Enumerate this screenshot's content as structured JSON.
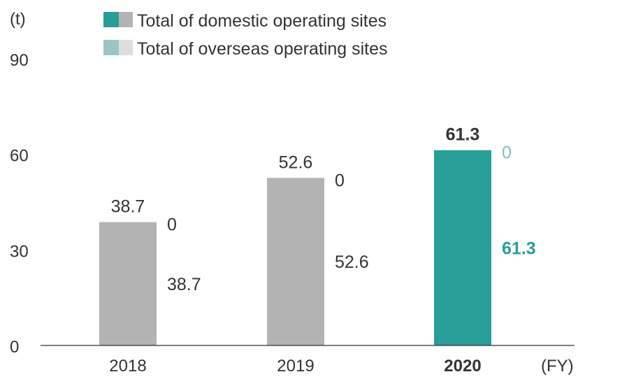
{
  "chart_data": {
    "type": "bar",
    "ylabel": "(t)",
    "xlabel": "(FY)",
    "ylim": [
      0,
      90
    ],
    "yticks": [
      "0",
      "30",
      "60",
      "90"
    ],
    "categories": [
      "2018",
      "2019",
      "2020"
    ],
    "highlight_category": "2020",
    "series": [
      {
        "name": "Total of domestic operating sites",
        "values": [
          38.7,
          52.6,
          61.3
        ],
        "value_labels": [
          "38.7",
          "52.6",
          "61.3"
        ]
      },
      {
        "name": "Total of overseas operating sites",
        "values": [
          0,
          0,
          0
        ],
        "value_labels": [
          "0",
          "0",
          "0"
        ]
      }
    ],
    "totals": [
      "38.7",
      "52.6",
      "61.3"
    ],
    "legend_position": "top",
    "colors": {
      "domestic_highlight": "#279e98",
      "domestic_other": "#b3b3b3",
      "overseas_highlight": "#9ac5c3",
      "overseas_other": "#dedede",
      "axis": "#333333",
      "text": "#333333",
      "highlight_label": "#279e98",
      "highlight_zero": "#86bcbb"
    }
  }
}
